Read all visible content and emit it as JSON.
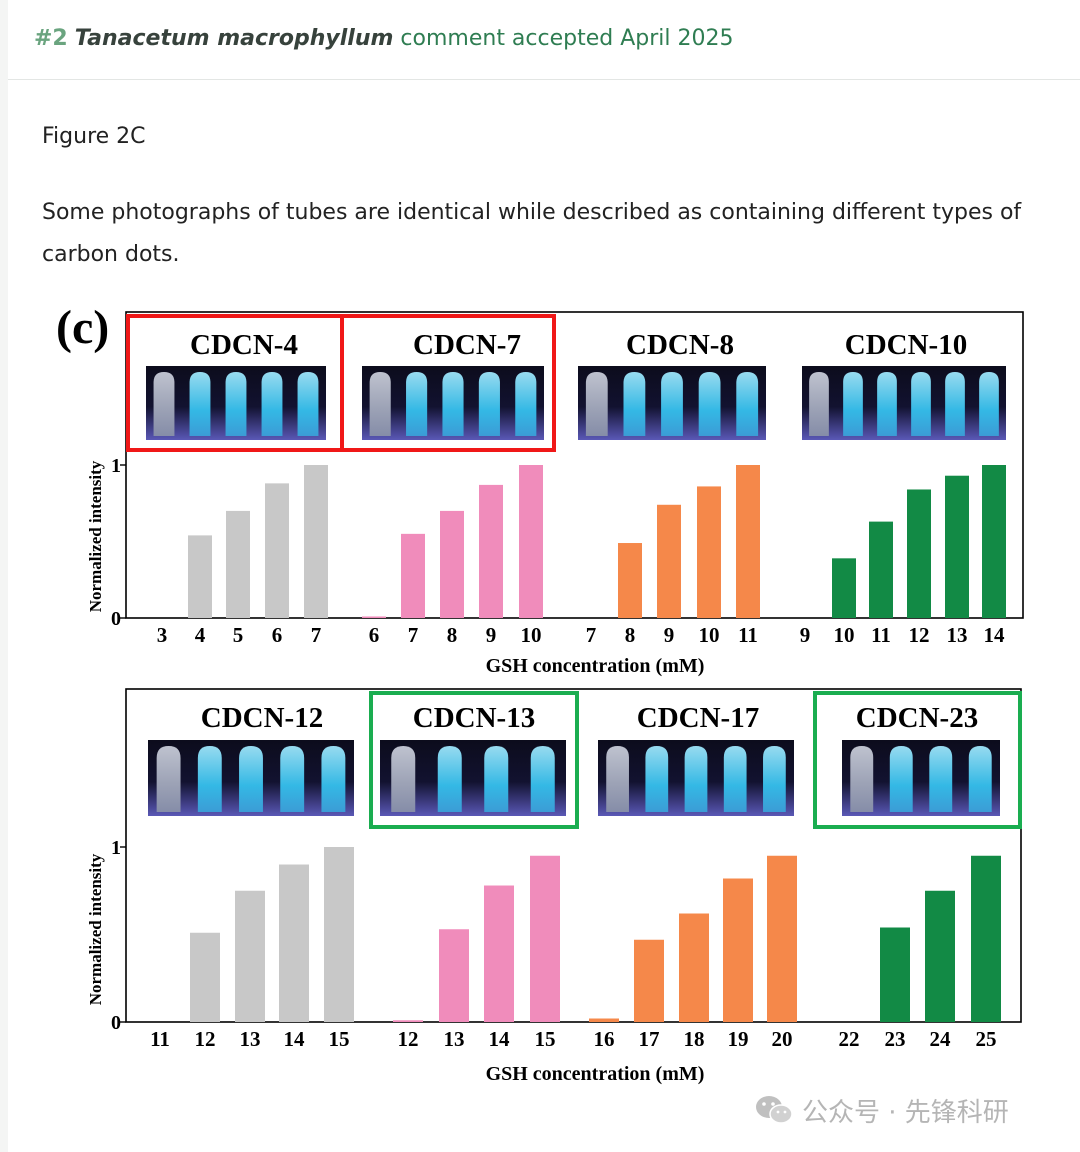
{
  "header": {
    "number": "#2",
    "species": "Tanacetum macrophyllum",
    "status": "comment accepted April 2025"
  },
  "body": {
    "figure_label": "Figure 2C",
    "description": "Some photographs of tubes are identical while described as containing different types of carbon dots."
  },
  "figure": {
    "panel_letter": "(c)",
    "colors": {
      "gray": "#c8c8c8",
      "pink": "#f08cbb",
      "orange": "#f5884a",
      "green": "#128a45",
      "red_box": "#f01818",
      "green_box": "#1aad50"
    }
  },
  "chart_data": [
    {
      "type": "bar",
      "ylabel": "Normalized intensity",
      "xlabel": "GSH concentration (mM)",
      "ylim": [
        0,
        1
      ],
      "y_ticks": [
        "0",
        "1"
      ],
      "groups": [
        {
          "name": "CDCN-4",
          "color": "gray",
          "categories": [
            "3",
            "4",
            "5",
            "6",
            "7"
          ],
          "values": [
            0,
            0.54,
            0.7,
            0.88,
            1.0
          ],
          "highlight": "red"
        },
        {
          "name": "CDCN-7",
          "color": "pink",
          "categories": [
            "6",
            "7",
            "8",
            "9",
            "10"
          ],
          "values": [
            0.01,
            0.55,
            0.7,
            0.87,
            1.0
          ],
          "highlight": "red"
        },
        {
          "name": "CDCN-8",
          "color": "orange",
          "categories": [
            "7",
            "8",
            "9",
            "10",
            "11"
          ],
          "values": [
            0,
            0.49,
            0.74,
            0.86,
            1.0
          ],
          "highlight": ""
        },
        {
          "name": "CDCN-10",
          "color": "green",
          "categories": [
            "9",
            "10",
            "11",
            "12",
            "13",
            "14"
          ],
          "values": [
            0,
            0.39,
            0.63,
            0.84,
            0.93,
            1.0
          ],
          "highlight": ""
        }
      ]
    },
    {
      "type": "bar",
      "ylabel": "Normalized intensity",
      "xlabel": "GSH concentration (mM)",
      "ylim": [
        0,
        1
      ],
      "y_ticks": [
        "0",
        "1"
      ],
      "groups": [
        {
          "name": "CDCN-12",
          "color": "gray",
          "categories": [
            "11",
            "12",
            "13",
            "14",
            "15"
          ],
          "values": [
            0,
            0.51,
            0.75,
            0.9,
            1.0
          ],
          "highlight": ""
        },
        {
          "name": "CDCN-13",
          "color": "pink",
          "categories": [
            "12",
            "13",
            "14",
            "15"
          ],
          "values": [
            0.01,
            0.53,
            0.78,
            0.95
          ],
          "highlight": "green"
        },
        {
          "name": "CDCN-17",
          "color": "orange",
          "categories": [
            "16",
            "17",
            "18",
            "19",
            "20"
          ],
          "values": [
            0.02,
            0.47,
            0.62,
            0.82,
            0.95
          ],
          "highlight": ""
        },
        {
          "name": "CDCN-23",
          "color": "green",
          "categories": [
            "22",
            "23",
            "24",
            "25"
          ],
          "values": [
            0,
            0.54,
            0.75,
            0.95
          ],
          "highlight": "green"
        }
      ]
    }
  ],
  "watermark": {
    "text": "公众号 · 先锋科研",
    "icon": "wechat-icon"
  }
}
